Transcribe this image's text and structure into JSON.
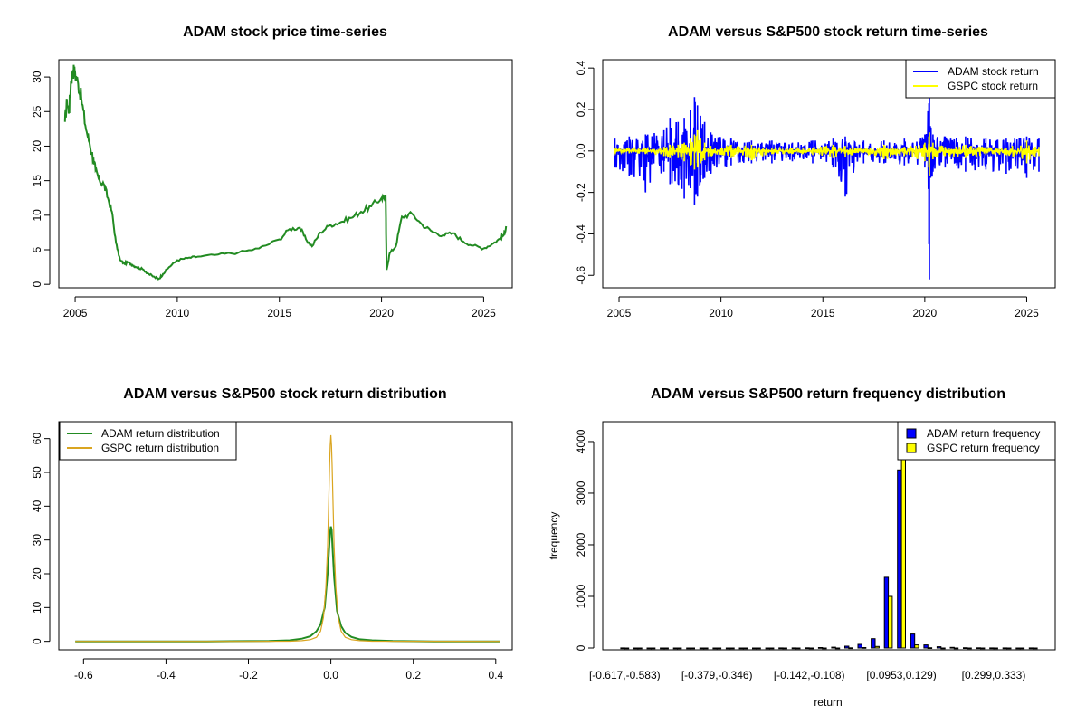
{
  "chart_data": [
    {
      "type": "line",
      "title": "ADAM stock price time-series",
      "xlabel": "",
      "ylabel": "",
      "xlim": [
        2004.2,
        2026.4
      ],
      "ylim": [
        -0.5,
        32.5
      ],
      "xticks": [
        2005,
        2010,
        2015,
        2020,
        2025
      ],
      "yticks": [
        0,
        5,
        10,
        15,
        20,
        25,
        30
      ],
      "grid": false,
      "colors": {
        "line": "#228b22"
      },
      "series": [
        {
          "x": [
            2004.5,
            2004.6,
            2004.7,
            2004.8,
            2004.9,
            2005.0,
            2005.15,
            2005.3,
            2005.5,
            2005.7,
            2005.9,
            2006.0,
            2006.2,
            2006.4,
            2006.6,
            2006.8,
            2007.0,
            2007.2,
            2007.4,
            2007.6,
            2007.8,
            2008.0,
            2008.3,
            2008.6,
            2008.9,
            2009.1,
            2009.3,
            2009.6,
            2010.0,
            2010.5,
            2011.0,
            2012.0,
            2013.0,
            2014.0,
            2015.0,
            2015.5,
            2016.0,
            2016.3,
            2016.6,
            2017.0,
            2017.5,
            2018.0,
            2018.5,
            2019.0,
            2019.5,
            2020.0,
            2020.2,
            2020.25,
            2020.4,
            2020.7,
            2021.0,
            2021.5,
            2022.0,
            2022.5,
            2023.0,
            2023.5,
            2024.0,
            2024.5,
            2025.0,
            2025.4,
            2025.8,
            2026.0,
            2026.1
          ],
          "y": [
            23.5,
            26.5,
            25.0,
            29.5,
            31.0,
            30.5,
            29.0,
            27.0,
            23.0,
            20.5,
            18.0,
            16.5,
            15.0,
            14.5,
            12.5,
            10.5,
            6.0,
            3.5,
            3.0,
            3.2,
            2.8,
            2.5,
            2.2,
            1.5,
            1.0,
            0.8,
            1.5,
            2.5,
            3.5,
            3.8,
            4.0,
            4.3,
            4.6,
            5.2,
            6.5,
            8.0,
            8.2,
            6.5,
            5.5,
            7.5,
            8.6,
            9.0,
            9.6,
            10.5,
            11.3,
            12.5,
            12.8,
            2.1,
            4.5,
            5.5,
            9.8,
            10.2,
            8.6,
            7.6,
            7.1,
            7.4,
            6.2,
            5.6,
            5.2,
            5.8,
            6.6,
            7.2,
            8.4
          ]
        }
      ]
    },
    {
      "type": "line",
      "title": "ADAM versus S&P500 stock return time-series",
      "xlabel": "",
      "ylabel": "",
      "xlim": [
        2004.2,
        2026.4
      ],
      "ylim": [
        -0.66,
        0.44
      ],
      "xticks": [
        2005,
        2010,
        2015,
        2020,
        2025
      ],
      "yticks": [
        -0.6,
        -0.4,
        -0.2,
        0.0,
        0.2,
        0.4
      ],
      "legend": "top-right",
      "series": [
        {
          "name": "ADAM stock return",
          "color": "#0000ff",
          "x": [
            2004.8,
            2005.5,
            2006.3,
            2007.2,
            2007.5,
            2007.9,
            2008.2,
            2008.5,
            2008.7,
            2008.85,
            2009.0,
            2009.2,
            2009.5,
            2010.5,
            2011.5,
            2012.5,
            2013.5,
            2014.5,
            2015.5,
            2016.1,
            2017.0,
            2018.0,
            2019.0,
            2020.0,
            2020.2,
            2020.23,
            2020.4,
            2021.0,
            2022.0,
            2023.0,
            2024.0,
            2025.0,
            2025.6
          ],
          "high": [
            0.06,
            0.07,
            0.08,
            0.1,
            0.16,
            0.14,
            0.16,
            0.2,
            0.26,
            0.22,
            0.17,
            0.14,
            0.09,
            0.06,
            0.05,
            0.05,
            0.04,
            0.05,
            0.06,
            0.07,
            0.05,
            0.05,
            0.06,
            0.08,
            0.23,
            0.34,
            0.08,
            0.07,
            0.07,
            0.06,
            0.06,
            0.07,
            0.06
          ],
          "low": [
            -0.08,
            -0.12,
            -0.2,
            -0.1,
            -0.16,
            -0.16,
            -0.23,
            -0.18,
            -0.26,
            -0.22,
            -0.15,
            -0.13,
            -0.11,
            -0.07,
            -0.06,
            -0.06,
            -0.05,
            -0.06,
            -0.08,
            -0.22,
            -0.06,
            -0.06,
            -0.07,
            -0.08,
            -0.45,
            -0.62,
            -0.1,
            -0.08,
            -0.1,
            -0.09,
            -0.11,
            -0.13,
            -0.1
          ]
        },
        {
          "name": "GSPC stock return",
          "color": "#ffff00",
          "x": [
            2004.8,
            2005.5,
            2006.3,
            2007.2,
            2007.5,
            2007.9,
            2008.2,
            2008.5,
            2008.7,
            2008.85,
            2009.0,
            2009.2,
            2009.5,
            2010.5,
            2011.5,
            2012.5,
            2013.5,
            2014.5,
            2015.5,
            2016.1,
            2017.0,
            2018.0,
            2019.0,
            2020.0,
            2020.2,
            2020.23,
            2020.4,
            2021.0,
            2022.0,
            2023.0,
            2024.0,
            2025.0,
            2025.6
          ],
          "high": [
            0.012,
            0.012,
            0.015,
            0.02,
            0.03,
            0.03,
            0.04,
            0.06,
            0.08,
            0.1,
            0.06,
            0.04,
            0.025,
            0.03,
            0.03,
            0.015,
            0.015,
            0.015,
            0.03,
            0.025,
            0.01,
            0.03,
            0.02,
            0.04,
            0.07,
            0.09,
            0.04,
            0.02,
            0.03,
            0.02,
            0.015,
            0.05,
            0.02
          ],
          "low": [
            -0.012,
            -0.012,
            -0.015,
            -0.025,
            -0.035,
            -0.035,
            -0.05,
            -0.07,
            -0.09,
            -0.08,
            -0.06,
            -0.045,
            -0.025,
            -0.035,
            -0.045,
            -0.015,
            -0.015,
            -0.02,
            -0.035,
            -0.03,
            -0.01,
            -0.04,
            -0.025,
            -0.05,
            -0.08,
            -0.12,
            -0.04,
            -0.025,
            -0.035,
            -0.02,
            -0.02,
            -0.06,
            -0.025
          ]
        }
      ]
    },
    {
      "type": "line",
      "title": "ADAM versus S&P500 stock return distribution",
      "xlabel": "",
      "ylabel": "",
      "xlim": [
        -0.66,
        0.44
      ],
      "ylim": [
        -2.5,
        65
      ],
      "xticks": [
        -0.6,
        -0.4,
        -0.2,
        0.0,
        0.2,
        0.4
      ],
      "yticks": [
        0,
        10,
        20,
        30,
        40,
        50,
        60
      ],
      "legend": "top-left",
      "series": [
        {
          "name": "ADAM return distribution",
          "color": "#228b22",
          "x": [
            -0.62,
            -0.3,
            -0.15,
            -0.1,
            -0.07,
            -0.05,
            -0.035,
            -0.025,
            -0.015,
            -0.008,
            -0.004,
            -0.002,
            0.0,
            0.002,
            0.004,
            0.008,
            0.015,
            0.025,
            0.035,
            0.05,
            0.07,
            0.1,
            0.15,
            0.25,
            0.41
          ],
          "y": [
            0,
            0,
            0.1,
            0.3,
            0.8,
            1.5,
            3.0,
            5.0,
            10.0,
            20.0,
            28.0,
            32.0,
            34.0,
            33.0,
            28.0,
            19.0,
            9.0,
            4.5,
            2.5,
            1.3,
            0.6,
            0.3,
            0.1,
            0,
            0
          ]
        },
        {
          "name": "GSPC return distribution",
          "color": "#daa520",
          "x": [
            -0.62,
            -0.2,
            -0.1,
            -0.07,
            -0.05,
            -0.035,
            -0.025,
            -0.018,
            -0.012,
            -0.008,
            -0.005,
            -0.003,
            -0.0015,
            0.0,
            0.0015,
            0.003,
            0.005,
            0.008,
            0.012,
            0.018,
            0.025,
            0.035,
            0.05,
            0.07,
            0.1,
            0.41
          ],
          "y": [
            0,
            0,
            0.05,
            0.2,
            0.5,
            1.2,
            3.0,
            7.0,
            16.0,
            28.0,
            42.0,
            52.0,
            58.0,
            61.0,
            58.0,
            52.0,
            42.0,
            28.0,
            16.0,
            7.0,
            3.0,
            1.2,
            0.5,
            0.2,
            0.05,
            0
          ]
        }
      ]
    },
    {
      "type": "bar",
      "title": "ADAM versus S&P500 return frequency distribution",
      "xlabel": "return",
      "ylabel": "frequency",
      "ylim": [
        0,
        4350
      ],
      "yticks": [
        0,
        1000,
        2000,
        3000,
        4000
      ],
      "legend": "top-right",
      "categories": [
        "[-0.617,-0.583)",
        "",
        "",
        "",
        "",
        "",
        "",
        "[-0.379,-0.346)",
        "",
        "",
        "",
        "",
        "",
        "",
        "[-0.142,-0.108)",
        "",
        "",
        "",
        "",
        "",
        "",
        "[0.0953,0.129)",
        "",
        "",
        "",
        "",
        "",
        "",
        "[0.299,0.333)",
        "",
        "",
        ""
      ],
      "series": [
        {
          "name": "ADAM return frequency",
          "color": "#0000ff",
          "values": [
            1,
            0,
            0,
            0,
            0,
            0,
            0,
            0,
            0,
            0,
            0,
            0,
            1,
            2,
            4,
            8,
            16,
            35,
            70,
            180,
            1370,
            3450,
            270,
            60,
            25,
            12,
            6,
            3,
            2,
            1,
            0,
            1
          ]
        },
        {
          "name": "GSPC return frequency",
          "color": "#ffff00",
          "values": [
            0,
            0,
            0,
            0,
            0,
            0,
            0,
            0,
            0,
            0,
            0,
            0,
            0,
            0,
            0,
            0,
            0,
            3,
            8,
            30,
            1000,
            4400,
            60,
            5,
            0,
            0,
            0,
            0,
            0,
            0,
            0,
            0
          ]
        }
      ]
    }
  ]
}
